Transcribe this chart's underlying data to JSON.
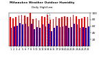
{
  "title": "Milwaukee Weather Outdoor Humidity",
  "subtitle": "Daily High/Low",
  "bar_width": 0.4,
  "background_color": "#ffffff",
  "plot_bg_color": "#ffffff",
  "grid_color": "#cccccc",
  "high_color": "#ff0000",
  "low_color": "#0000cc",
  "legend_high": "High",
  "legend_low": "Low",
  "highlight_day_index": 13,
  "ylim": [
    0,
    100
  ],
  "yticks": [
    20,
    40,
    60,
    80,
    100
  ],
  "days": [
    "1",
    "2",
    "3",
    "4",
    "5",
    "6",
    "7",
    "8",
    "9",
    "10",
    "11",
    "12",
    "13",
    "14",
    "15",
    "16",
    "17",
    "18",
    "19",
    "20",
    "21",
    "22",
    "23",
    "24",
    "25",
    "26",
    "27",
    "28"
  ],
  "highs": [
    88,
    83,
    87,
    93,
    94,
    92,
    88,
    100,
    82,
    83,
    77,
    90,
    88,
    95,
    80,
    82,
    87,
    84,
    88,
    91,
    87,
    88,
    95,
    90,
    82,
    83,
    88,
    87
  ],
  "lows": [
    55,
    60,
    62,
    70,
    65,
    68,
    60,
    68,
    52,
    58,
    55,
    65,
    60,
    68,
    45,
    55,
    62,
    58,
    60,
    62,
    55,
    58,
    68,
    65,
    55,
    58,
    55,
    60
  ]
}
